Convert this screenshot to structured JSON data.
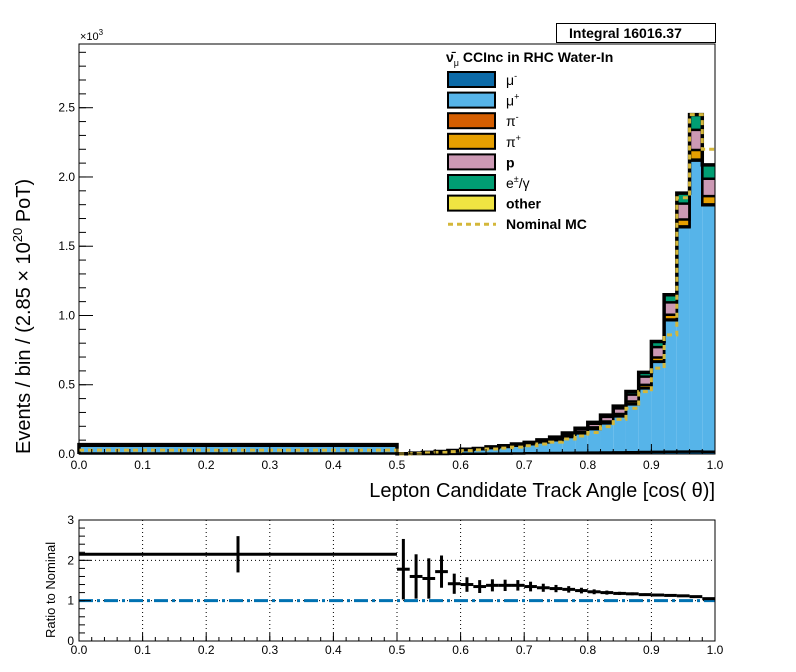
{
  "stat_box": {
    "label": "Integral",
    "value": "16016.37"
  },
  "legend": {
    "title_symbol": "ν̄",
    "title_sub": "μ",
    "title_rest": " CCInc in RHC Water-In",
    "entries": [
      {
        "key": "mu_minus",
        "label": "μ",
        "sup": "-",
        "color": "#0b6aa8"
      },
      {
        "key": "mu_plus",
        "label": "μ",
        "sup": "+",
        "color": "#56b4e9"
      },
      {
        "key": "pi_minus",
        "label": "π",
        "sup": "-",
        "color": "#d55e00"
      },
      {
        "key": "pi_plus",
        "label": "π",
        "sup": "+",
        "color": "#e69f00"
      },
      {
        "key": "p",
        "label": "p",
        "sup": "",
        "color": "#cc99b4"
      },
      {
        "key": "e_gamma",
        "label": "e",
        "sup": "±",
        "suffix": "/γ",
        "color": "#009e73"
      },
      {
        "key": "other",
        "label": "other",
        "sup": "",
        "color": "#f0e442"
      },
      {
        "key": "nominal",
        "label": "Nominal MC",
        "sup": "",
        "color": "#d4b73a",
        "dashed": true
      }
    ]
  },
  "chart_data": [
    {
      "type": "bar",
      "stacked": true,
      "xlabel": "Lepton Candidate Track Angle [cos(   θ)]",
      "ylabel": "Events / bin / (2.85  × 10",
      "ylabel_sup": "20",
      "ylabel_tail": " PoT)",
      "y_exponent": "×10",
      "y_exponent_sup": "3",
      "xlim": [
        0,
        1
      ],
      "ylim": [
        0,
        2.96
      ],
      "x_ticks": [
        "0.0",
        "0.1",
        "0.2",
        "0.3",
        "0.4",
        "0.5",
        "0.6",
        "0.7",
        "0.8",
        "0.9",
        "1.0"
      ],
      "y_ticks": [
        "0.0",
        "0.5",
        "1.0",
        "1.5",
        "2.0",
        "2.5"
      ],
      "bin_edges": [
        0.0,
        0.5,
        0.52,
        0.54,
        0.56,
        0.58,
        0.6,
        0.62,
        0.64,
        0.66,
        0.68,
        0.7,
        0.72,
        0.74,
        0.76,
        0.78,
        0.8,
        0.82,
        0.84,
        0.86,
        0.88,
        0.9,
        0.92,
        0.94,
        0.96,
        0.98,
        1.0
      ],
      "series": [
        {
          "name": "μ-",
          "values": [
            0.004,
            0.0,
            0.0,
            0.0,
            0.0,
            0.001,
            0.002,
            0.002,
            0.003,
            0.003,
            0.004,
            0.005,
            0.006,
            0.007,
            0.008,
            0.009,
            0.01,
            0.011,
            0.012,
            0.013,
            0.014,
            0.015,
            0.016,
            0.017,
            0.018,
            0.016
          ]
        },
        {
          "name": "μ+",
          "values": [
            0.056,
            0.002,
            0.005,
            0.01,
            0.015,
            0.02,
            0.027,
            0.033,
            0.04,
            0.048,
            0.056,
            0.065,
            0.078,
            0.092,
            0.115,
            0.14,
            0.17,
            0.21,
            0.26,
            0.345,
            0.46,
            0.65,
            0.95,
            1.62,
            2.1,
            1.78
          ]
        },
        {
          "name": "π-",
          "values": [
            0.0,
            0.0,
            0.0,
            0.0,
            0.0,
            0.0,
            0.0,
            0.0,
            0.0,
            0.0,
            0.0,
            0.0,
            0.001,
            0.001,
            0.001,
            0.001,
            0.002,
            0.002,
            0.002,
            0.003,
            0.003,
            0.004,
            0.005,
            0.006,
            0.007,
            0.006
          ]
        },
        {
          "name": "π+",
          "values": [
            0.002,
            0.0,
            0.0,
            0.0,
            0.0,
            0.001,
            0.001,
            0.001,
            0.002,
            0.002,
            0.003,
            0.003,
            0.004,
            0.005,
            0.006,
            0.008,
            0.01,
            0.012,
            0.015,
            0.018,
            0.022,
            0.028,
            0.034,
            0.05,
            0.07,
            0.06
          ]
        },
        {
          "name": "p",
          "values": [
            0.004,
            0.0,
            0.001,
            0.001,
            0.002,
            0.002,
            0.003,
            0.003,
            0.004,
            0.005,
            0.006,
            0.008,
            0.009,
            0.012,
            0.016,
            0.02,
            0.026,
            0.033,
            0.04,
            0.05,
            0.06,
            0.075,
            0.09,
            0.115,
            0.145,
            0.125
          ]
        },
        {
          "name": "e±/γ",
          "values": [
            0.002,
            0.0,
            0.0,
            0.001,
            0.001,
            0.001,
            0.001,
            0.001,
            0.002,
            0.002,
            0.003,
            0.003,
            0.004,
            0.005,
            0.006,
            0.008,
            0.01,
            0.013,
            0.017,
            0.022,
            0.03,
            0.04,
            0.055,
            0.075,
            0.11,
            0.1
          ]
        },
        {
          "name": "other",
          "values": [
            0.0,
            0.0,
            0.0,
            0.0,
            0.0,
            0.0,
            0.0,
            0.0,
            0.0,
            0.0,
            0.0,
            0.0,
            0.0,
            0.0,
            0.0,
            0.0,
            0.0,
            0.0,
            0.0,
            0.0,
            0.0,
            0.0,
            0.0,
            0.0,
            0.0,
            0.0
          ]
        }
      ],
      "nominal": [
        0.028,
        0.0,
        0.003,
        0.008,
        0.012,
        0.017,
        0.024,
        0.03,
        0.036,
        0.042,
        0.05,
        0.06,
        0.072,
        0.086,
        0.108,
        0.13,
        0.155,
        0.198,
        0.25,
        0.33,
        0.45,
        0.62,
        0.86,
        1.85,
        2.45,
        2.2
      ]
    },
    {
      "type": "scatter",
      "ylabel": "Ratio to Nominal",
      "xlim": [
        0,
        1
      ],
      "ylim": [
        0,
        3
      ],
      "x_ticks": [
        "0.0",
        "0.1",
        "0.2",
        "0.3",
        "0.4",
        "0.5",
        "0.6",
        "0.7",
        "0.8",
        "0.9",
        "1.0"
      ],
      "y_ticks": [
        "0",
        "1",
        "2",
        "3"
      ],
      "grid": true,
      "reference_line": 1,
      "reference_color": "#0072b2",
      "bin_edges": [
        0.0,
        0.5,
        0.52,
        0.54,
        0.56,
        0.58,
        0.6,
        0.62,
        0.64,
        0.66,
        0.68,
        0.7,
        0.72,
        0.74,
        0.76,
        0.78,
        0.8,
        0.82,
        0.84,
        0.86,
        0.88,
        0.9,
        0.92,
        0.94,
        0.96,
        0.98,
        1.0
      ],
      "values": [
        2.15,
        1.78,
        1.6,
        1.55,
        1.72,
        1.42,
        1.4,
        1.35,
        1.38,
        1.38,
        1.38,
        1.35,
        1.32,
        1.3,
        1.28,
        1.25,
        1.22,
        1.2,
        1.18,
        1.17,
        1.15,
        1.14,
        1.13,
        1.12,
        1.1,
        1.05
      ],
      "errors": [
        0.45,
        0.75,
        0.55,
        0.5,
        0.4,
        0.25,
        0.18,
        0.16,
        0.15,
        0.14,
        0.13,
        0.12,
        0.1,
        0.09,
        0.08,
        0.07,
        0.06,
        0.05,
        0.04,
        0.035,
        0.03,
        0.025,
        0.02,
        0.015,
        0.012,
        0.01
      ]
    }
  ]
}
